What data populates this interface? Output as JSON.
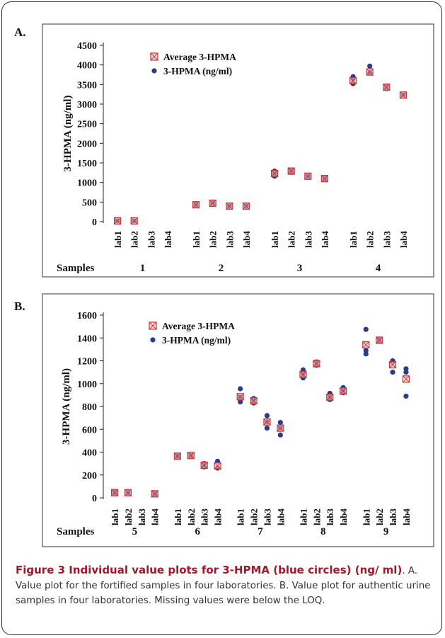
{
  "colors": {
    "average_marker": "#cc3333",
    "average_fill": "#f2c4c4",
    "point_marker": "#2a3a8c",
    "axis": "#222222"
  },
  "caption": {
    "title": "Figure 3 Individual value plots for 3-HPMA (blue circles) (ng/ ml)",
    "text": ". A. Value plot for the fortified samples in four laboratories. B. Value plot for authentic urine samples in four laboratories. Missing values were below the LOQ."
  },
  "chart_data": [
    {
      "panel_label": "A.",
      "type": "scatter",
      "ylabel": "3-HPMA (ng/ml)",
      "xlabel": "Samples",
      "ylim": [
        0,
        4500
      ],
      "yticks": [
        0,
        500,
        1000,
        1500,
        2000,
        2500,
        3000,
        3500,
        4000,
        4500
      ],
      "legend": {
        "placement": "top-left",
        "entries": [
          "Average 3-HPMA",
          "3-HPMA (ng/ml)"
        ]
      },
      "groups": [
        {
          "sample": "1",
          "labs": [
            {
              "lab": "lab1",
              "average": 20,
              "points": [
                20
              ]
            },
            {
              "lab": "lab2",
              "average": 20,
              "points": [
                20
              ]
            },
            {
              "lab": "lab3",
              "average": null,
              "points": []
            },
            {
              "lab": "lab4",
              "average": null,
              "points": []
            }
          ]
        },
        {
          "sample": "2",
          "labs": [
            {
              "lab": "lab1",
              "average": 430,
              "points": [
                410,
                450
              ]
            },
            {
              "lab": "lab2",
              "average": 470,
              "points": [
                460,
                480
              ]
            },
            {
              "lab": "lab3",
              "average": 395,
              "points": [
                385,
                405
              ]
            },
            {
              "lab": "lab4",
              "average": 395,
              "points": [
                385,
                405
              ]
            }
          ]
        },
        {
          "sample": "3",
          "labs": [
            {
              "lab": "lab1",
              "average": 1230,
              "points": [
                1160,
                1230,
                1290
              ]
            },
            {
              "lab": "lab2",
              "average": 1290,
              "points": [
                1260,
                1320
              ]
            },
            {
              "lab": "lab3",
              "average": 1160,
              "points": [
                1150,
                1170
              ]
            },
            {
              "lab": "lab4",
              "average": 1100,
              "points": [
                1080,
                1130
              ]
            }
          ]
        },
        {
          "sample": "4",
          "labs": [
            {
              "lab": "lab1",
              "average": 3600,
              "points": [
                3520,
                3650,
                3700
              ]
            },
            {
              "lab": "lab2",
              "average": 3820,
              "points": [
                3800,
                3970
              ]
            },
            {
              "lab": "lab3",
              "average": 3430,
              "points": [
                3400,
                3460
              ]
            },
            {
              "lab": "lab4",
              "average": 3230,
              "points": [
                3230
              ]
            }
          ]
        }
      ]
    },
    {
      "panel_label": "B.",
      "type": "scatter",
      "ylabel": "3-HPMA (ng/ml)",
      "xlabel": "Samples",
      "ylim": [
        0,
        1600
      ],
      "yticks": [
        0,
        200,
        400,
        600,
        800,
        1000,
        1200,
        1400,
        1600
      ],
      "legend": {
        "placement": "top-left",
        "entries": [
          "Average 3-HPMA",
          "3-HPMA (ng/ml)"
        ]
      },
      "groups": [
        {
          "sample": "5",
          "labs": [
            {
              "lab": "lab1",
              "average": 45,
              "points": [
                40,
                55
              ]
            },
            {
              "lab": "lab2",
              "average": 45,
              "points": [
                40,
                50
              ]
            },
            {
              "lab": "lab3",
              "average": null,
              "points": []
            },
            {
              "lab": "lab4",
              "average": 35,
              "points": [
                30,
                40
              ]
            }
          ]
        },
        {
          "sample": "6",
          "labs": [
            {
              "lab": "lab1",
              "average": 365,
              "points": [
                360,
                370
              ]
            },
            {
              "lab": "lab2",
              "average": 370,
              "points": [
                365,
                375
              ]
            },
            {
              "lab": "lab3",
              "average": 285,
              "points": [
                270,
                300
              ]
            },
            {
              "lab": "lab4",
              "average": 280,
              "points": [
                260,
                320
              ]
            }
          ]
        },
        {
          "sample": "7",
          "labs": [
            {
              "lab": "lab1",
              "average": 885,
              "points": [
                840,
                880,
                955
              ]
            },
            {
              "lab": "lab2",
              "average": 850,
              "points": [
                830,
                860,
                870
              ]
            },
            {
              "lab": "lab3",
              "average": 665,
              "points": [
                610,
                665,
                720
              ]
            },
            {
              "lab": "lab4",
              "average": 610,
              "points": [
                550,
                610,
                660
              ]
            }
          ]
        },
        {
          "sample": "8",
          "labs": [
            {
              "lab": "lab1",
              "average": 1080,
              "points": [
                1050,
                1090,
                1120
              ]
            },
            {
              "lab": "lab2",
              "average": 1175,
              "points": [
                1160,
                1190
              ]
            },
            {
              "lab": "lab3",
              "average": 880,
              "points": [
                860,
                880,
                915
              ]
            },
            {
              "lab": "lab4",
              "average": 935,
              "points": [
                920,
                940,
                965
              ]
            }
          ]
        },
        {
          "sample": "9",
          "labs": [
            {
              "lab": "lab1",
              "average": 1340,
              "points": [
                1260,
                1290,
                1475
              ]
            },
            {
              "lab": "lab2",
              "average": 1380,
              "points": [
                1370,
                1390
              ]
            },
            {
              "lab": "lab3",
              "average": 1165,
              "points": [
                1100,
                1200
              ]
            },
            {
              "lab": "lab4",
              "average": 1040,
              "points": [
                890,
                1100,
                1130
              ]
            }
          ]
        }
      ]
    }
  ]
}
